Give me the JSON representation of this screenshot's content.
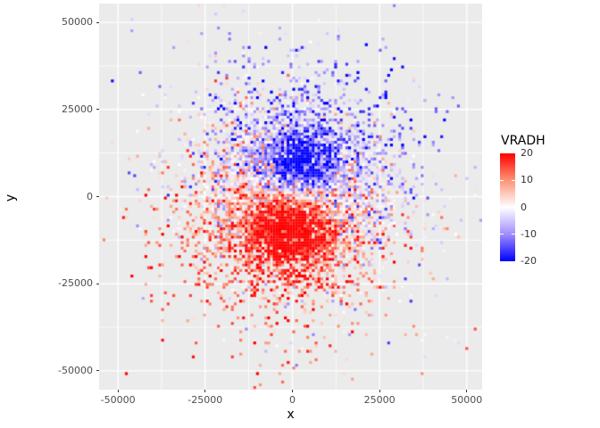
{
  "chart_data": {
    "type": "scatter",
    "subtype": "tile-field",
    "title": "",
    "xlabel": "x",
    "ylabel": "y",
    "xlim": [
      -55400,
      54400
    ],
    "ylim": [
      -55400,
      55400
    ],
    "x_ticks": [
      -50000,
      -25000,
      0,
      25000,
      50000
    ],
    "x_tick_labels": [
      "-50000",
      "-25000",
      "0",
      "25000",
      "50000"
    ],
    "y_ticks": [
      -50000,
      -25000,
      0,
      25000,
      50000
    ],
    "y_tick_labels": [
      "-50000",
      "-25000",
      "0",
      "25000",
      "50000"
    ],
    "x_minor_ticks": [
      -37500,
      -12500,
      12500,
      37500
    ],
    "y_minor_ticks": [
      -37500,
      -12500,
      12500,
      37500
    ],
    "grid": "on",
    "panel_bg": "#EBEBEB",
    "grid_major_color": "#FFFFFF",
    "grid_minor_color": "#FFFFFF",
    "axis_text_color": "#4D4D4D",
    "axis_title_color": "#000000",
    "tick_mark_color": "#333333",
    "legend": {
      "title": "VRADH",
      "position": "right",
      "limits": [
        -20,
        20
      ],
      "ticks": [
        10,
        0,
        -10
      ],
      "tick_labels": [
        "20",
        "10",
        "0",
        "-10",
        "-20"
      ],
      "tick_label_values": [
        20,
        10,
        0,
        -10,
        -20
      ],
      "low_color": "#0000FF",
      "low_mid_color": "#A08CFC",
      "mid_color": "#FFFFFF",
      "high_mid_color": "#FC9476",
      "high_color": "#FF0000"
    },
    "generation": {
      "seed": 20240117,
      "grid_step": 800,
      "density_components": [
        {
          "amp": 1.6,
          "sigma": 15000
        },
        {
          "amp": 0.14,
          "sigma": 24000
        }
      ],
      "uniform_density": 0.004,
      "max_radius": 50000,
      "value_field": {
        "blue_core": {
          "x": 1500,
          "y": 8000,
          "sigma": 7000,
          "amp": -22
        },
        "red_core": {
          "x": -1500,
          "y": -6500,
          "sigma": 7500,
          "amp": 20
        },
        "red_broad": {
          "x": 3000,
          "y": -14000,
          "sigma": 12000,
          "amp": 8
        },
        "ns_gradient_amp": -9,
        "ns_gradient_scale": 25000,
        "ew_gradient_amp": 5,
        "ew_gradient_scale": 30000,
        "noise_sd": 5.5,
        "noise_uniform_p": 0.32,
        "noise_uniform_range": 21
      }
    }
  }
}
